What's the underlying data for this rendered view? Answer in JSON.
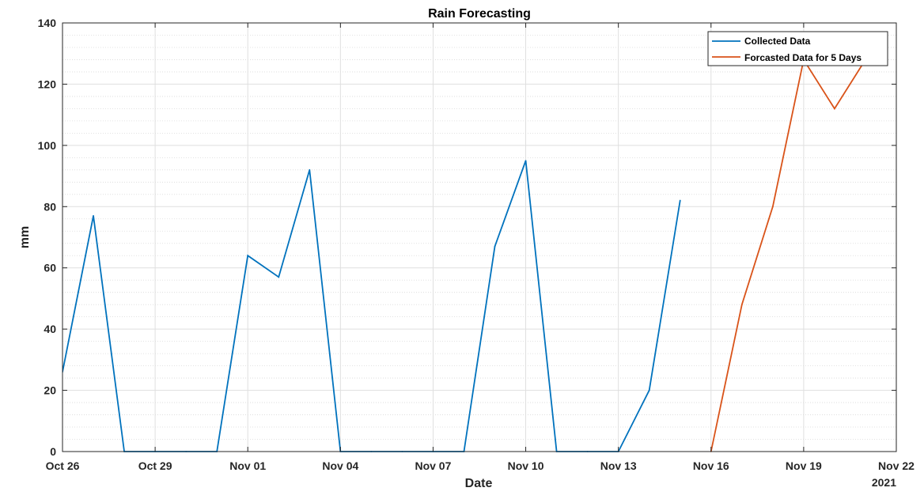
{
  "chart_data": {
    "type": "line",
    "title": "Rain Forecasting",
    "xlabel": "Date",
    "ylabel": "mm",
    "x_secondary_label": "2021",
    "ylim": [
      0,
      140
    ],
    "yticks": [
      0,
      20,
      40,
      60,
      80,
      100,
      120,
      140
    ],
    "xlim": [
      "2021-10-26",
      "2021-11-22"
    ],
    "xticks": [
      {
        "date": "2021-10-26",
        "label": "Oct 26"
      },
      {
        "date": "2021-10-29",
        "label": "Oct 29"
      },
      {
        "date": "2021-11-01",
        "label": "Nov 01"
      },
      {
        "date": "2021-11-04",
        "label": "Nov 04"
      },
      {
        "date": "2021-11-07",
        "label": "Nov 07"
      },
      {
        "date": "2021-11-10",
        "label": "Nov 10"
      },
      {
        "date": "2021-11-13",
        "label": "Nov 13"
      },
      {
        "date": "2021-11-16",
        "label": "Nov 16"
      },
      {
        "date": "2021-11-19",
        "label": "Nov 19"
      },
      {
        "date": "2021-11-22",
        "label": "Nov 22"
      }
    ],
    "grid": true,
    "minor_grid_y": true,
    "legend_position": "top-right",
    "series": [
      {
        "name": "Collected Data",
        "color": "#0072BD",
        "points": [
          {
            "x": "2021-10-26",
            "y": 26
          },
          {
            "x": "2021-10-27",
            "y": 77
          },
          {
            "x": "2021-10-28",
            "y": 0
          },
          {
            "x": "2021-10-29",
            "y": 0
          },
          {
            "x": "2021-10-30",
            "y": 0
          },
          {
            "x": "2021-10-31",
            "y": 0
          },
          {
            "x": "2021-11-01",
            "y": 64
          },
          {
            "x": "2021-11-02",
            "y": 57
          },
          {
            "x": "2021-11-03",
            "y": 92
          },
          {
            "x": "2021-11-04",
            "y": 0
          },
          {
            "x": "2021-11-05",
            "y": 0
          },
          {
            "x": "2021-11-06",
            "y": 0
          },
          {
            "x": "2021-11-07",
            "y": 0
          },
          {
            "x": "2021-11-08",
            "y": 0
          },
          {
            "x": "2021-11-09",
            "y": 67
          },
          {
            "x": "2021-11-10",
            "y": 95
          },
          {
            "x": "2021-11-11",
            "y": 0
          },
          {
            "x": "2021-11-12",
            "y": 0
          },
          {
            "x": "2021-11-13",
            "y": 0
          },
          {
            "x": "2021-11-14",
            "y": 20
          },
          {
            "x": "2021-11-15",
            "y": 82
          }
        ]
      },
      {
        "name": "Forcasted Data for 5 Days",
        "color": "#D95319",
        "points": [
          {
            "x": "2021-11-16",
            "y": 0
          },
          {
            "x": "2021-11-17",
            "y": 48
          },
          {
            "x": "2021-11-18",
            "y": 80
          },
          {
            "x": "2021-11-19",
            "y": 128
          },
          {
            "x": "2021-11-20",
            "y": 112
          },
          {
            "x": "2021-11-21",
            "y": 128
          }
        ]
      }
    ]
  }
}
